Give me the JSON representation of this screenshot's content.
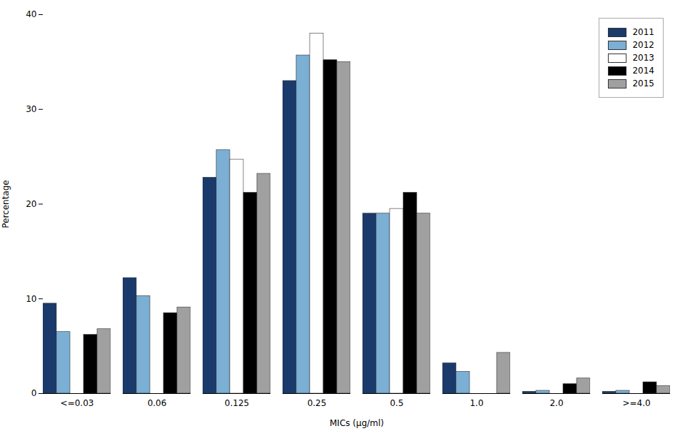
{
  "chart_data": {
    "type": "bar",
    "categories": [
      "<=0.03",
      "0.06",
      "0.125",
      "0.25",
      "0.5",
      "1.0",
      "2.0",
      ">=4.0"
    ],
    "series": [
      {
        "name": "2011",
        "color": "#1a3a6b",
        "values": [
          9.5,
          12.2,
          22.8,
          33.0,
          19.0,
          3.2,
          0.2,
          0.2
        ]
      },
      {
        "name": "2012",
        "color": "#7bafd4",
        "values": [
          6.5,
          10.3,
          25.7,
          35.7,
          19.0,
          2.3,
          0.3,
          0.3
        ]
      },
      {
        "name": "2013",
        "color": "#ffffff",
        "values": [
          0.0,
          0.0,
          24.7,
          38.0,
          19.5,
          0.0,
          0.0,
          0.0
        ]
      },
      {
        "name": "2014",
        "color": "#000000",
        "values": [
          6.2,
          8.5,
          21.2,
          35.2,
          21.2,
          0.0,
          1.0,
          1.2
        ]
      },
      {
        "name": "2015",
        "color": "#a0a0a0",
        "values": [
          6.8,
          9.1,
          23.2,
          35.0,
          19.0,
          4.3,
          1.6,
          0.8
        ]
      }
    ],
    "xlabel": "MICs (μg/ml)",
    "ylabel": "Percentage",
    "ylim": [
      0,
      40
    ],
    "yticks": [
      0,
      10,
      20,
      30,
      40
    ],
    "grid": false,
    "legend": "upper right"
  }
}
